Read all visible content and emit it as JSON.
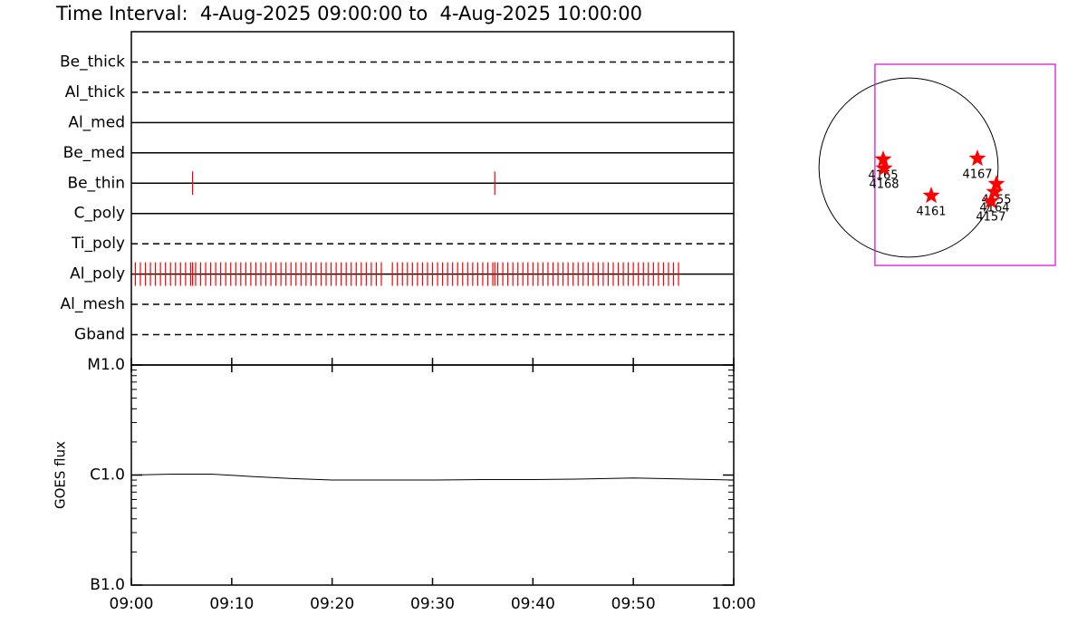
{
  "title": "Time Interval:  4-Aug-2025 09:00:00 to  4-Aug-2025 10:00:00",
  "chart_data": [
    {
      "type": "timeline",
      "categories": [
        "Be_thick",
        "Al_thick",
        "Al_med",
        "Be_med",
        "Be_thin",
        "C_poly",
        "Ti_poly",
        "Al_poly",
        "Al_mesh",
        "Gband"
      ],
      "styles": [
        "dashed",
        "dashed",
        "solid",
        "solid",
        "solid",
        "solid",
        "dashed",
        "solid",
        "dashed",
        "dashed"
      ],
      "color": "#ff0000",
      "xlim": [
        0,
        60
      ],
      "events": [
        [],
        [],
        [],
        [],
        [
          6.1,
          36.2
        ],
        [],
        [],
        [
          0.4,
          0.9,
          1.4,
          1.9,
          2.4,
          2.9,
          3.4,
          3.9,
          4.4,
          4.9,
          5.4,
          5.9,
          6.1,
          6.4,
          6.9,
          7.4,
          7.9,
          8.4,
          8.9,
          9.4,
          9.9,
          10.4,
          10.9,
          11.4,
          11.9,
          12.4,
          12.9,
          13.4,
          13.9,
          14.4,
          14.9,
          15.4,
          15.9,
          16.4,
          16.9,
          17.4,
          17.9,
          18.4,
          18.9,
          19.4,
          19.9,
          20.4,
          20.9,
          21.4,
          21.9,
          22.4,
          22.9,
          23.4,
          23.9,
          24.4,
          24.9,
          26.0,
          26.5,
          27.0,
          27.5,
          28.0,
          28.5,
          29.0,
          29.5,
          30.0,
          30.5,
          31.0,
          31.5,
          32.0,
          32.5,
          33.0,
          33.5,
          34.0,
          34.5,
          35.0,
          35.5,
          36.0,
          36.2,
          36.5,
          37.0,
          37.5,
          38.0,
          38.5,
          39.0,
          39.5,
          40.0,
          40.5,
          41.0,
          41.5,
          42.0,
          42.5,
          43.0,
          43.5,
          44.0,
          44.5,
          45.0,
          45.5,
          46.0,
          46.5,
          47.0,
          47.5,
          48.0,
          48.5,
          49.0,
          49.5,
          50.0,
          50.5,
          51.0,
          51.5,
          52.0,
          52.5,
          53.0,
          53.5,
          54.0,
          54.5
        ],
        [],
        []
      ]
    },
    {
      "type": "line",
      "y_label": "GOES flux",
      "log_y": true,
      "color": "#000000",
      "x": [
        0,
        4,
        8,
        12,
        16,
        20,
        25,
        30,
        35,
        40,
        45,
        50,
        55,
        60
      ],
      "values": [
        1e-06,
        1.02e-06,
        1.02e-06,
        9.7e-07,
        9.3e-07,
        9e-07,
        9e-07,
        9e-07,
        9.1e-07,
        9.1e-07,
        9.2e-07,
        9.4e-07,
        9.2e-07,
        9e-07
      ],
      "xlim": [
        0,
        60
      ],
      "xticks": [
        {
          "value": 0,
          "label": "09:00"
        },
        {
          "value": 10,
          "label": "09:10"
        },
        {
          "value": 20,
          "label": "09:20"
        },
        {
          "value": 30,
          "label": "09:30"
        },
        {
          "value": 40,
          "label": "09:40"
        },
        {
          "value": 50,
          "label": "09:50"
        },
        {
          "value": 60,
          "label": "10:00"
        }
      ],
      "ylim": [
        1e-07,
        1e-05
      ],
      "yticks": [
        {
          "value": 1e-05,
          "label": "M1.0"
        },
        {
          "value": 1e-06,
          "label": "C1.0"
        },
        {
          "value": 1e-07,
          "label": "B1.0"
        }
      ],
      "yminorticks": [
        2e-07,
        3e-07,
        4e-07,
        5e-07,
        6e-07,
        7e-07,
        8e-07,
        9e-07,
        2e-06,
        3e-06,
        4e-06,
        5e-06,
        6e-06,
        7e-06,
        8e-06,
        9e-06
      ]
    },
    {
      "type": "map",
      "disk_radius": 960,
      "box_color": "#dd00dd",
      "box": {
        "x": [
          -360,
          1573
        ],
        "y": [
          -1049,
          1107
        ]
      },
      "color": "#ff0000",
      "labels": [
        "4165",
        "4168",
        "4167",
        "4161",
        "4155",
        "4164",
        "4157"
      ],
      "x": [
        -272,
        -262,
        738,
        243,
        942,
        922,
        883
      ],
      "y": [
        87,
        -10,
        97,
        -301,
        -175,
        -262,
        -359
      ]
    }
  ]
}
